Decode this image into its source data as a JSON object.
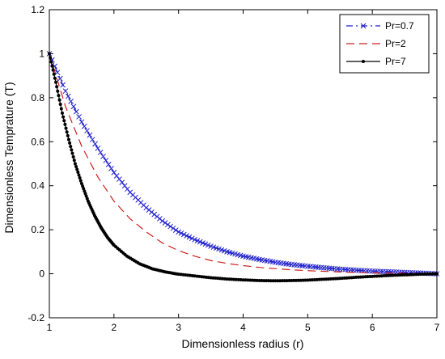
{
  "chart_data": {
    "type": "line",
    "title": "",
    "xlabel": "Dimensionless radius (r)",
    "ylabel": "Dimensionless Temprature (T)",
    "xlim": [
      1,
      7
    ],
    "ylim": [
      -0.2,
      1.2
    ],
    "x_ticks": [
      1,
      2,
      3,
      4,
      5,
      6,
      7
    ],
    "y_ticks": [
      -0.2,
      0,
      0.2,
      0.4,
      0.6,
      0.8,
      1,
      1.2
    ],
    "y_tick_labels": [
      "-0.2",
      "0",
      "0.2",
      "0.4",
      "0.6",
      "0.8",
      "1",
      "1.2"
    ],
    "grid": false,
    "legend_position": "top-right",
    "series": [
      {
        "name": "Pr=0.7",
        "color": "#1f1fcc",
        "line_style": "dash-dot",
        "marker": "x",
        "x": [
          1.0,
          1.25,
          1.5,
          1.75,
          2.0,
          2.25,
          2.5,
          2.75,
          3.0,
          3.25,
          3.5,
          3.75,
          4.0,
          4.25,
          4.5,
          4.75,
          5.0,
          5.25,
          5.5,
          5.75,
          6.0,
          6.25,
          6.5,
          6.75,
          7.0
        ],
        "y": [
          1.0,
          0.83,
          0.69,
          0.57,
          0.46,
          0.37,
          0.3,
          0.24,
          0.19,
          0.155,
          0.125,
          0.1,
          0.08,
          0.065,
          0.052,
          0.042,
          0.034,
          0.027,
          0.021,
          0.016,
          0.012,
          0.009,
          0.006,
          0.003,
          0.0
        ]
      },
      {
        "name": "Pr=2",
        "color": "#cc1f1f",
        "line_style": "dash",
        "marker": "none",
        "x": [
          1.0,
          1.25,
          1.5,
          1.75,
          2.0,
          2.25,
          2.5,
          2.75,
          3.0,
          3.25,
          3.5,
          3.75,
          4.0,
          4.25,
          4.5,
          4.75,
          5.0,
          5.25,
          5.5,
          5.75,
          6.0,
          6.25,
          6.5,
          6.75,
          7.0
        ],
        "y": [
          1.0,
          0.76,
          0.58,
          0.44,
          0.33,
          0.25,
          0.19,
          0.14,
          0.105,
          0.08,
          0.06,
          0.047,
          0.037,
          0.029,
          0.023,
          0.018,
          0.014,
          0.011,
          0.008,
          0.006,
          0.004,
          0.003,
          0.002,
          0.001,
          0.0
        ]
      },
      {
        "name": "Pr=7",
        "color": "#000000",
        "line_style": "solid",
        "marker": "dot",
        "x": [
          1.0,
          1.1,
          1.2,
          1.3,
          1.4,
          1.5,
          1.6,
          1.7,
          1.8,
          1.9,
          2.0,
          2.2,
          2.4,
          2.6,
          2.8,
          3.0,
          3.25,
          3.5,
          3.75,
          4.0,
          4.25,
          4.5,
          4.75,
          5.0,
          5.25,
          5.5,
          5.75,
          6.0,
          6.25,
          6.5,
          6.75,
          7.0
        ],
        "y": [
          1.0,
          0.87,
          0.73,
          0.61,
          0.5,
          0.41,
          0.33,
          0.265,
          0.21,
          0.165,
          0.13,
          0.08,
          0.045,
          0.022,
          0.008,
          -0.002,
          -0.01,
          -0.018,
          -0.024,
          -0.028,
          -0.031,
          -0.032,
          -0.031,
          -0.029,
          -0.025,
          -0.021,
          -0.016,
          -0.012,
          -0.008,
          -0.005,
          -0.002,
          0.0
        ]
      }
    ]
  }
}
